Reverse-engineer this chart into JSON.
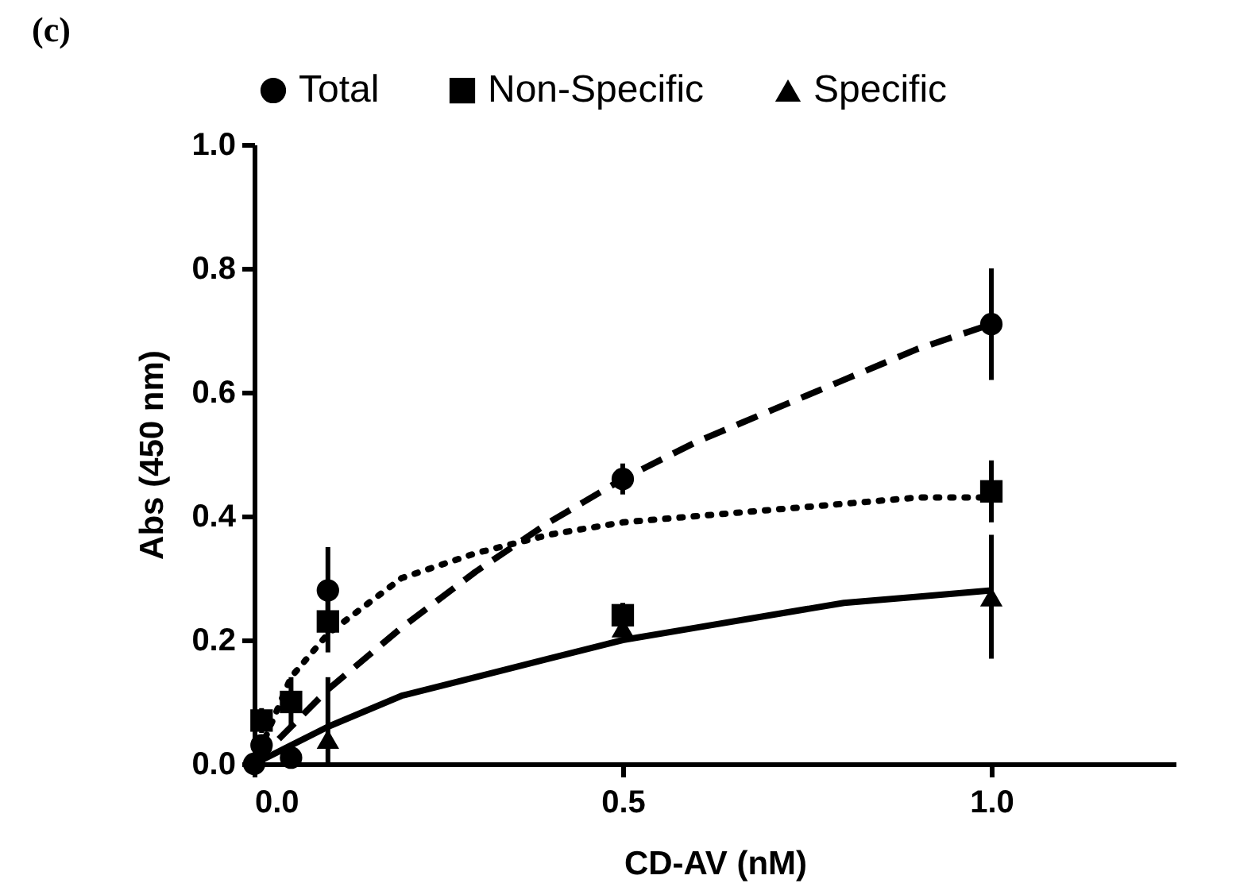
{
  "chart_data": {
    "type": "scatter",
    "title": "(c)",
    "xlabel": "CD-AV (nM)",
    "ylabel": "Abs (450 nm)",
    "xlim": [
      0,
      1.25
    ],
    "xticks": [
      {
        "value": 0,
        "label": "0.0"
      },
      0.5,
      {
        "value": 1,
        "label": "1.0"
      }
    ],
    "ylim": [
      0,
      1
    ],
    "yticks": [
      {
        "value": 0,
        "label": "0.0"
      },
      0.2,
      0.4,
      0.6,
      0.8,
      {
        "value": 1,
        "label": "1.0"
      }
    ],
    "grid": false,
    "legend": "top",
    "series": [
      {
        "name": "Total",
        "marker": "circle",
        "color": "#000000",
        "x": [
          0,
          0.01,
          0.05,
          0.1,
          0.5,
          1.0
        ],
        "values": [
          0,
          0.03,
          0.01,
          0.28,
          0.46,
          0.71
        ],
        "errors": [
          null,
          null,
          null,
          0.07,
          0.025,
          0.09
        ]
      },
      {
        "name": "Non-Specific",
        "marker": "square",
        "color": "#000000",
        "x": [
          0.01,
          0.05,
          0.1,
          0.5,
          1.0
        ],
        "values": [
          0.07,
          0.1,
          0.23,
          0.24,
          0.44
        ],
        "errors": [
          0.02,
          0.04,
          0.05,
          0.02,
          0.05
        ]
      },
      {
        "name": "Specific",
        "marker": "triangle",
        "color": "#000000",
        "x": [
          0.1,
          0.5,
          1.0
        ],
        "values": [
          0.04,
          0.22,
          0.27
        ],
        "errors": [
          [
            0,
            0.14
          ],
          null,
          0.1
        ]
      },
      {
        "type": "line",
        "line_style": "dashed",
        "color": "#000000",
        "x": [
          0,
          0.05,
          0.1,
          0.2,
          0.3,
          0.4,
          0.5,
          0.6,
          0.7,
          0.8,
          0.9,
          1.0
        ],
        "values": [
          0,
          0.06,
          0.12,
          0.22,
          0.31,
          0.39,
          0.46,
          0.52,
          0.57,
          0.62,
          0.67,
          0.71
        ]
      },
      {
        "type": "line",
        "line_style": "dotted",
        "color": "#000000",
        "x": [
          0,
          0.05,
          0.1,
          0.2,
          0.3,
          0.4,
          0.5,
          0.6,
          0.7,
          0.8,
          0.9,
          1.0
        ],
        "values": [
          0,
          0.14,
          0.21,
          0.3,
          0.34,
          0.37,
          0.39,
          0.4,
          0.41,
          0.42,
          0.43,
          0.43
        ]
      },
      {
        "type": "line",
        "line_style": "solid",
        "color": "#000000",
        "x": [
          0,
          0.05,
          0.1,
          0.2,
          0.3,
          0.4,
          0.5,
          0.6,
          0.7,
          0.8,
          0.9,
          1.0
        ],
        "values": [
          0,
          0.03,
          0.06,
          0.11,
          0.14,
          0.17,
          0.2,
          0.22,
          0.24,
          0.26,
          0.27,
          0.28
        ]
      }
    ]
  }
}
